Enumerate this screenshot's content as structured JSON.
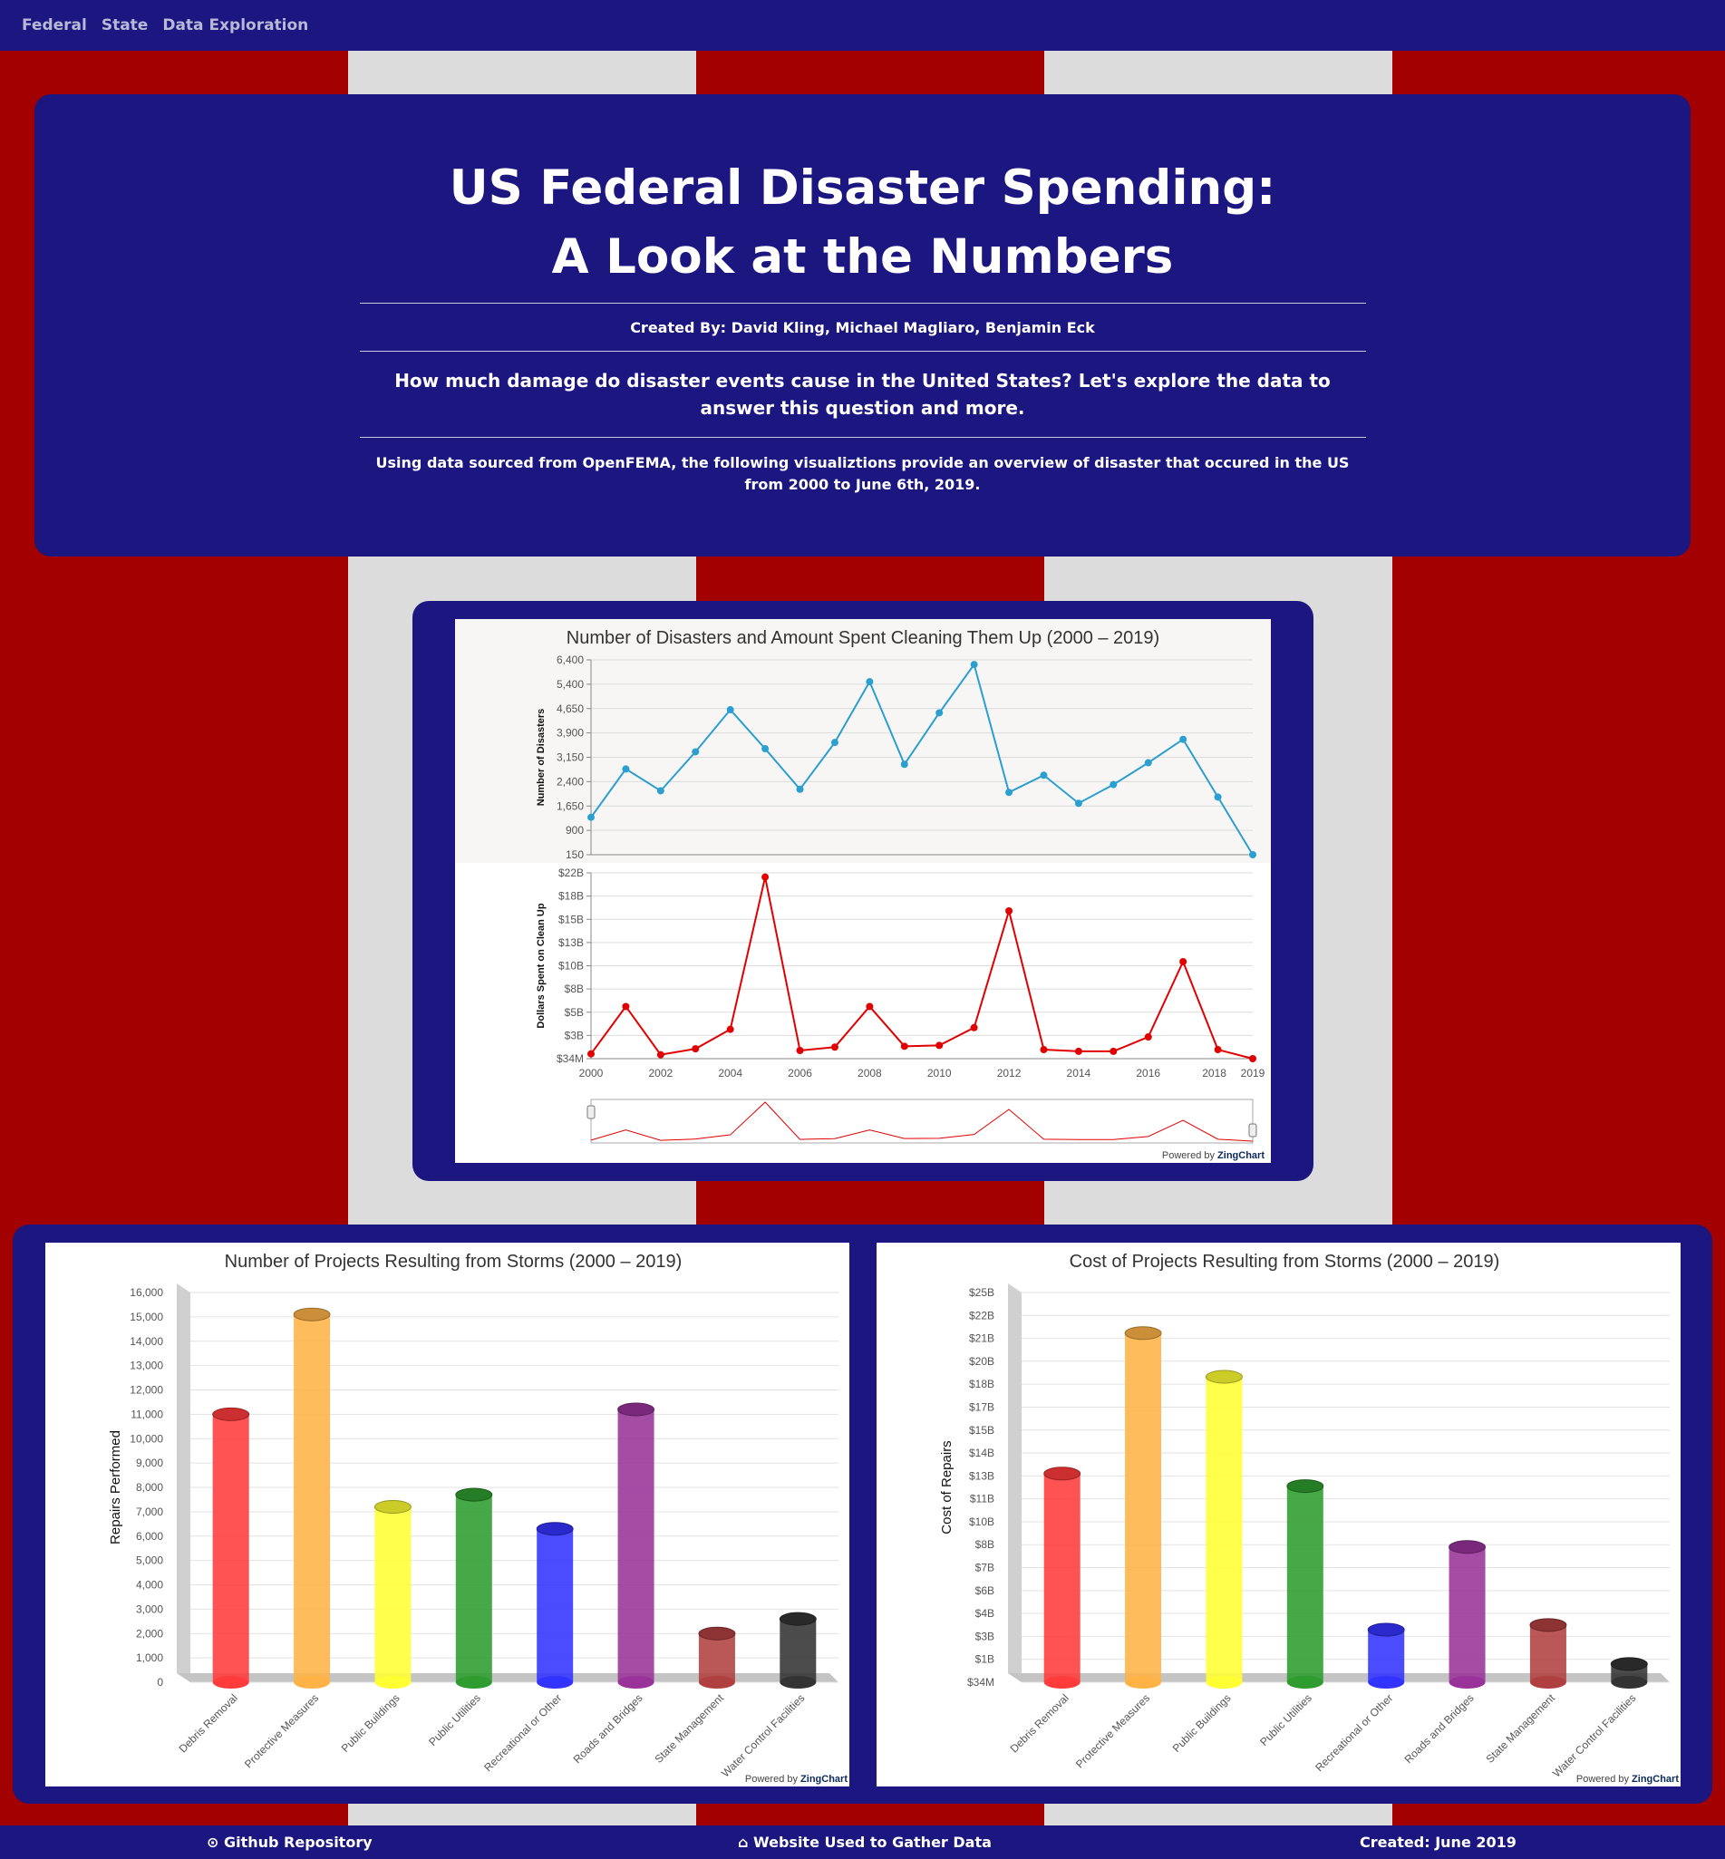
{
  "nav": {
    "items": [
      "Federal",
      "State",
      "Data Exploration"
    ]
  },
  "hero": {
    "title_line1": "US Federal Disaster Spending:",
    "title_line2": "A Look at the Numbers",
    "authors": "Created By: David Kling, Michael Magliaro, Benjamin Eck",
    "question": "How much damage do disaster events cause in the United States? Let's explore the data to answer this question and more.",
    "source": "Using data sourced from OpenFEMA, the following visualiztions provide an overview of disaster that occured in the US from 2000 to June 6th, 2019."
  },
  "chart_data": [
    {
      "type": "line",
      "title": "Number of Disasters and Amount Spent Cleaning Them Up (2000 – 2019)",
      "x": [
        2000,
        2001,
        2002,
        2003,
        2004,
        2005,
        2006,
        2007,
        2008,
        2009,
        2010,
        2011,
        2012,
        2013,
        2014,
        2015,
        2016,
        2017,
        2018,
        2019
      ],
      "x_tick_labels": [
        "2000",
        "2002",
        "2004",
        "2006",
        "2008",
        "2010",
        "2012",
        "2014",
        "2016",
        "2018",
        "2019"
      ],
      "series": [
        {
          "ylabel": "Number of Disasters",
          "color": "#2a9fd0",
          "values": [
            1350,
            2900,
            2200,
            3450,
            4800,
            3550,
            2250,
            3750,
            5700,
            3050,
            4700,
            6250,
            2150,
            2700,
            1800,
            2400,
            3100,
            3850,
            2000,
            150
          ],
          "ylim": [
            150,
            6400
          ],
          "y_tick_labels": [
            "150",
            "900",
            "1,650",
            "2,400",
            "3,150",
            "3,900",
            "4,650",
            "5,400",
            "6,400"
          ]
        },
        {
          "ylabel": "Dollars Spent on Clean Up",
          "color": "#e00000",
          "values": [
            0.6,
            6.2,
            0.5,
            1.2,
            3.5,
            21.5,
            1.0,
            1.4,
            6.2,
            1.5,
            1.6,
            3.7,
            17.5,
            1.1,
            0.9,
            0.9,
            2.6,
            11.5,
            1.1,
            0.034
          ],
          "ylim": [
            0.034,
            22
          ],
          "y_tick_labels": [
            "$34M",
            "$3B",
            "$5B",
            "$8B",
            "$10B",
            "$13B",
            "$15B",
            "$18B",
            "$22B"
          ]
        }
      ],
      "credit_prefix": "Powered by",
      "credit_brand": "ZingChart"
    },
    {
      "type": "bar",
      "title": "Number of Projects Resulting from Storms (2000 – 2019)",
      "ylabel": "Repairs Performed",
      "categories": [
        "Debris Removal",
        "Protective Measures",
        "Public Buildings",
        "Public Utilities",
        "Recreational or Other",
        "Roads and Bridges",
        "State Management",
        "Water Control Facilities"
      ],
      "values": [
        11000,
        15100,
        7200,
        7700,
        6300,
        11200,
        2000,
        2600
      ],
      "colors": [
        "#ff3b3b",
        "#ffb347",
        "#ffff33",
        "#2e9c2e",
        "#3333ff",
        "#993399",
        "#b04040",
        "#333333"
      ],
      "ylim": [
        0,
        16000
      ],
      "y_tick_labels": [
        "0",
        "1,000",
        "2,000",
        "3,000",
        "4,000",
        "5,000",
        "6,000",
        "7,000",
        "8,000",
        "9,000",
        "10,000",
        "11,000",
        "12,000",
        "13,000",
        "14,000",
        "15,000",
        "16,000"
      ],
      "credit_prefix": "Powered by",
      "credit_brand": "ZingChart"
    },
    {
      "type": "bar",
      "title": "Cost of Projects Resulting from Storms (2000 – 2019)",
      "ylabel": "Cost of Repairs",
      "categories": [
        "Debris Removal",
        "Protective Measures",
        "Public Buildings",
        "Public Utilities",
        "Recreational or Other",
        "Roads and Bridges",
        "State Management",
        "Water Control Facilities"
      ],
      "values": [
        13.4,
        22.4,
        19.6,
        12.6,
        3.4,
        8.7,
        3.7,
        1.2
      ],
      "colors": [
        "#ff3b3b",
        "#ffb347",
        "#ffff33",
        "#2e9c2e",
        "#3333ff",
        "#993399",
        "#b04040",
        "#333333"
      ],
      "ylim": [
        0.034,
        25
      ],
      "y_tick_labels": [
        "$34M",
        "$1B",
        "$3B",
        "$4B",
        "$6B",
        "$7B",
        "$8B",
        "$10B",
        "$11B",
        "$13B",
        "$14B",
        "$15B",
        "$17B",
        "$18B",
        "$20B",
        "$21B",
        "$22B",
        "$25B"
      ],
      "credit_prefix": "Powered by",
      "credit_brand": "ZingChart"
    }
  ],
  "footer": {
    "github": "Github Repository",
    "website": "Website Used to Gather Data",
    "created": "Created: June 2019"
  }
}
